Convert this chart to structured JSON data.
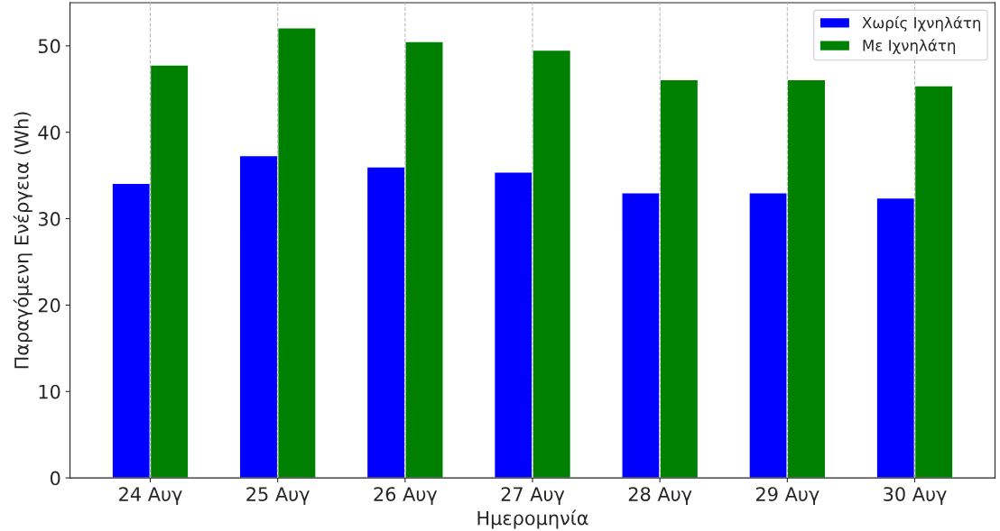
{
  "chart_data": {
    "type": "bar",
    "xlabel": "Ημερομηνία",
    "ylabel": "Παραγόμενη Ενέργεια (Wh)",
    "categories": [
      "24 Αυγ",
      "25 Αυγ",
      "26 Αυγ",
      "27 Αυγ",
      "28 Αυγ",
      "29 Αυγ",
      "30 Αυγ"
    ],
    "series": [
      {
        "name": "Χωρίς Ιχνηλάτη",
        "color": "#0000ff",
        "values": [
          34.1,
          37.3,
          36.0,
          35.4,
          33.0,
          33.0,
          32.4
        ]
      },
      {
        "name": "Με Ιχνηλάτη",
        "color": "#008000",
        "values": [
          47.8,
          52.1,
          50.5,
          49.5,
          46.1,
          46.1,
          45.4
        ]
      }
    ],
    "ylim": [
      0,
      55
    ],
    "yticks": [
      0,
      10,
      20,
      30,
      40,
      50
    ],
    "grid": "x",
    "legend": "top right"
  }
}
